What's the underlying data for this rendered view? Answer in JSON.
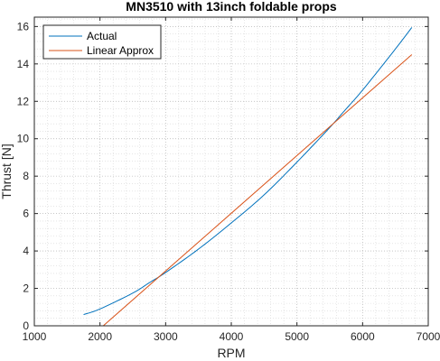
{
  "chart_data": {
    "type": "line",
    "title": "MN3510 with 13inch foldable props",
    "xlabel": "RPM",
    "ylabel": "Thrust [N]",
    "xlim": [
      1000,
      7000
    ],
    "ylim": [
      0,
      16.5
    ],
    "xticks": [
      1000,
      2000,
      3000,
      4000,
      5000,
      6000,
      7000
    ],
    "yticks": [
      0,
      2,
      4,
      6,
      8,
      10,
      12,
      14,
      16
    ],
    "grid": "major-and-minor-dotted",
    "legend_position": "top-left",
    "series": [
      {
        "name": "Actual",
        "color": "#0072BD",
        "x": [
          1750,
          2000,
          2500,
          2750,
          3000,
          3500,
          4000,
          4500,
          5000,
          5500,
          5700,
          6000,
          6500,
          6750
        ],
        "y": [
          0.6,
          0.9,
          1.75,
          2.3,
          2.85,
          4.1,
          5.5,
          7.0,
          8.75,
          10.6,
          11.4,
          12.6,
          14.8,
          15.95
        ]
      },
      {
        "name": "Linear Approx",
        "color": "#D95319",
        "x": [
          2050,
          6750
        ],
        "y": [
          0.0,
          14.5
        ]
      }
    ]
  }
}
